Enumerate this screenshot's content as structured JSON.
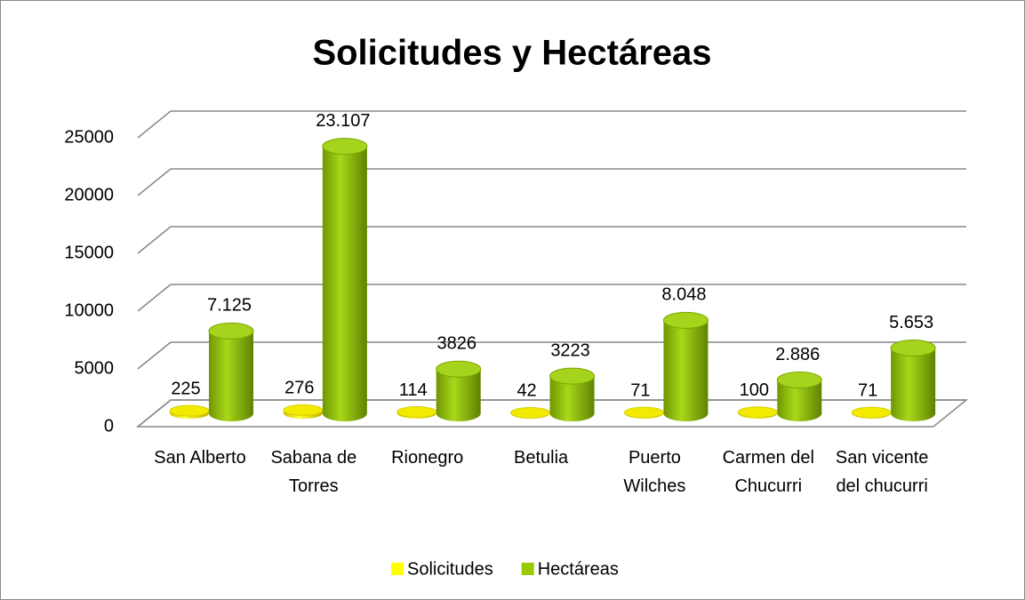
{
  "chart_data": {
    "type": "bar3d",
    "title": "Solicitudes y Hectáreas",
    "categories": [
      "San Alberto",
      "Sabana de Torres",
      "Rionegro",
      "Betulia",
      "Puerto Wilches",
      "Carmen del Chucurri",
      "San vicente del chucurri"
    ],
    "series": [
      {
        "name": "Solicitudes",
        "color": "#ffff00",
        "values": [
          225,
          276,
          114,
          42,
          71,
          100,
          71
        ],
        "value_labels": [
          "225",
          "276",
          "114",
          "42",
          "71",
          "100",
          "71"
        ]
      },
      {
        "name": "Hectáreas",
        "color": "#99cc00",
        "values": [
          7125,
          23107,
          3826,
          3223,
          8048,
          2886,
          5653
        ],
        "value_labels": [
          "7.125",
          "23.107",
          "3826",
          "3223",
          "8.048",
          "2.886",
          "5.653"
        ]
      }
    ],
    "ylim": [
      0,
      25000
    ],
    "yticks": [
      0,
      5000,
      10000,
      15000,
      20000,
      25000
    ],
    "grid": true,
    "legend": "bottom"
  }
}
